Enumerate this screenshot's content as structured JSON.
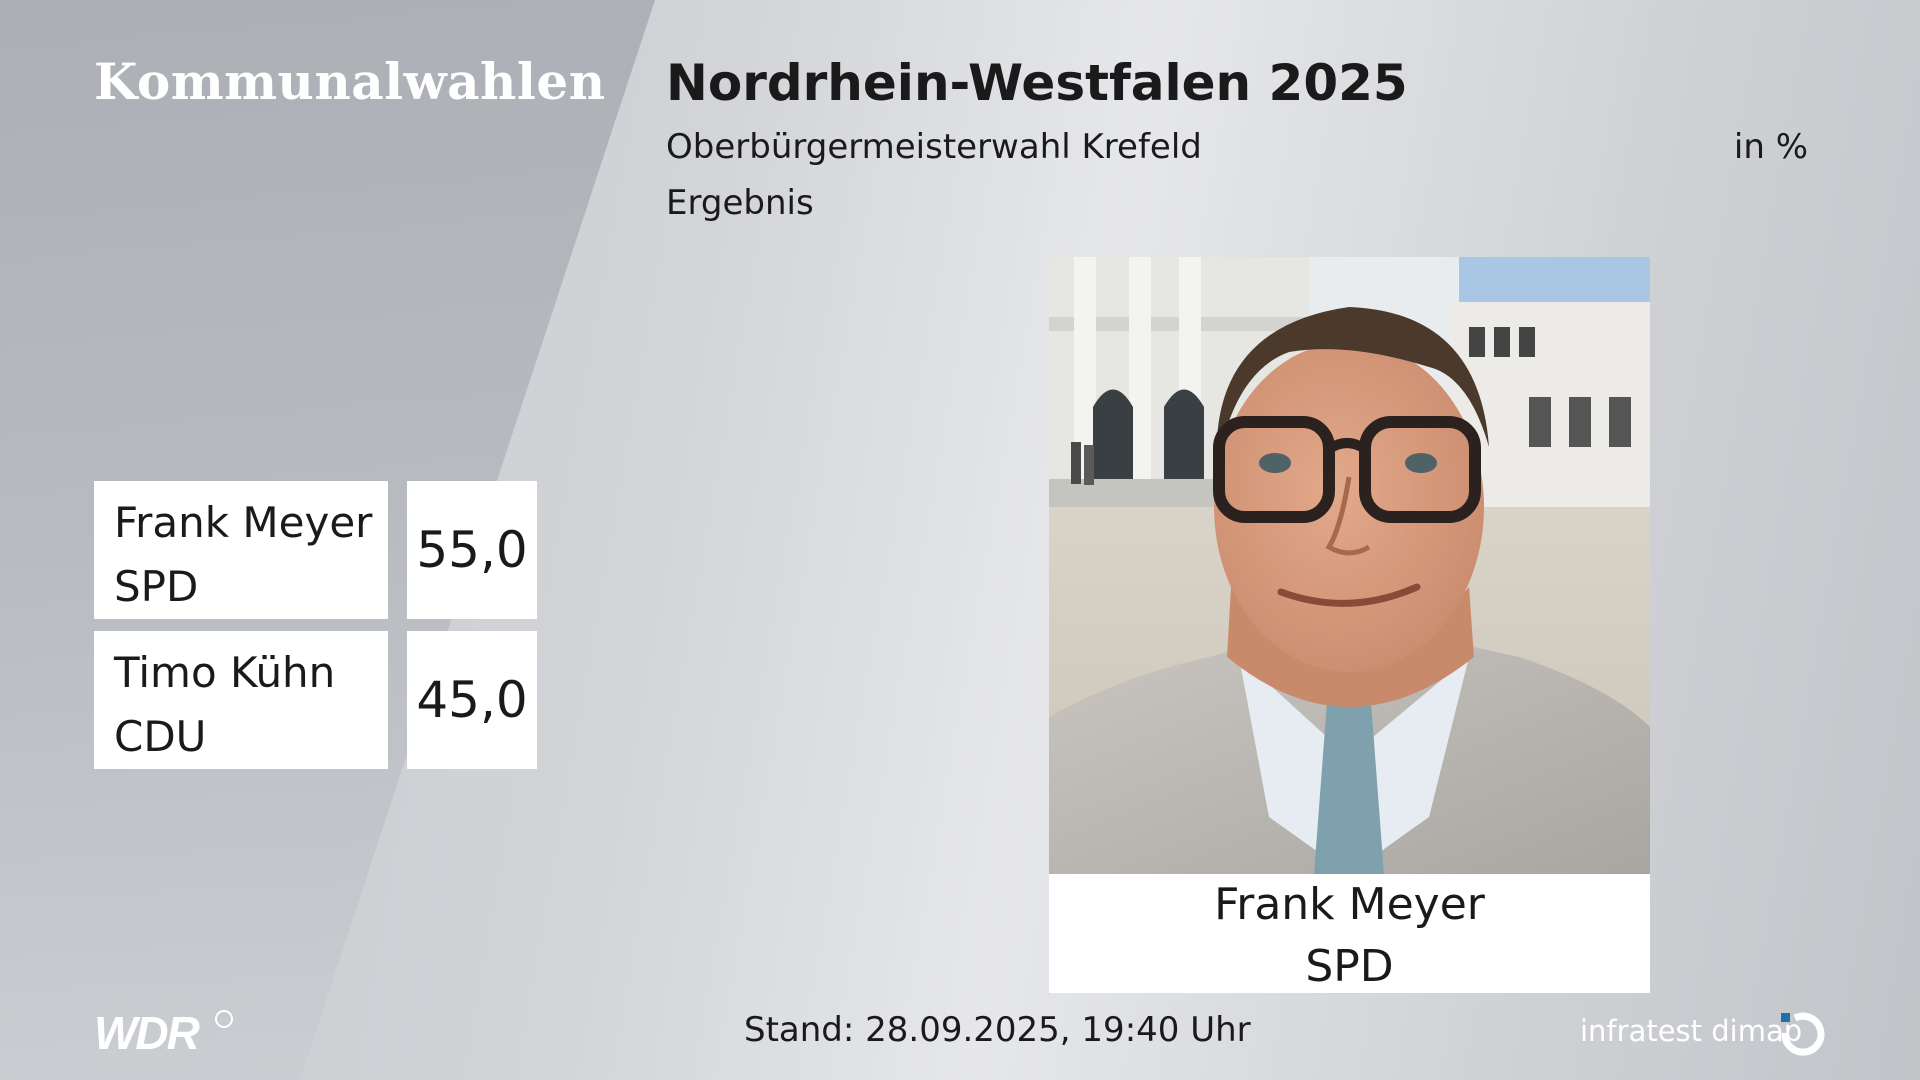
{
  "header": {
    "brand_title": "Kommunalwahlen",
    "title": "Nordrhein-Westfalen 2025",
    "subtitle": "Oberbürgermeisterwahl Krefeld",
    "unit": "in %",
    "result_label": "Ergebnis"
  },
  "results": [
    {
      "name": "Frank Meyer",
      "party": "SPD",
      "value": "55,0"
    },
    {
      "name": "Timo Kühn",
      "party": "CDU",
      "value": "45,0"
    }
  ],
  "winner": {
    "name": "Frank Meyer",
    "party": "SPD"
  },
  "footer": {
    "broadcaster": "WDR",
    "stand": "Stand: 28.09.2025, 19:40 Uhr",
    "pollster": "infratest dimap"
  },
  "colors": {
    "panel_text": "#ffffff",
    "body_text": "#1a1a1a",
    "card_bg": "#ffffff"
  }
}
